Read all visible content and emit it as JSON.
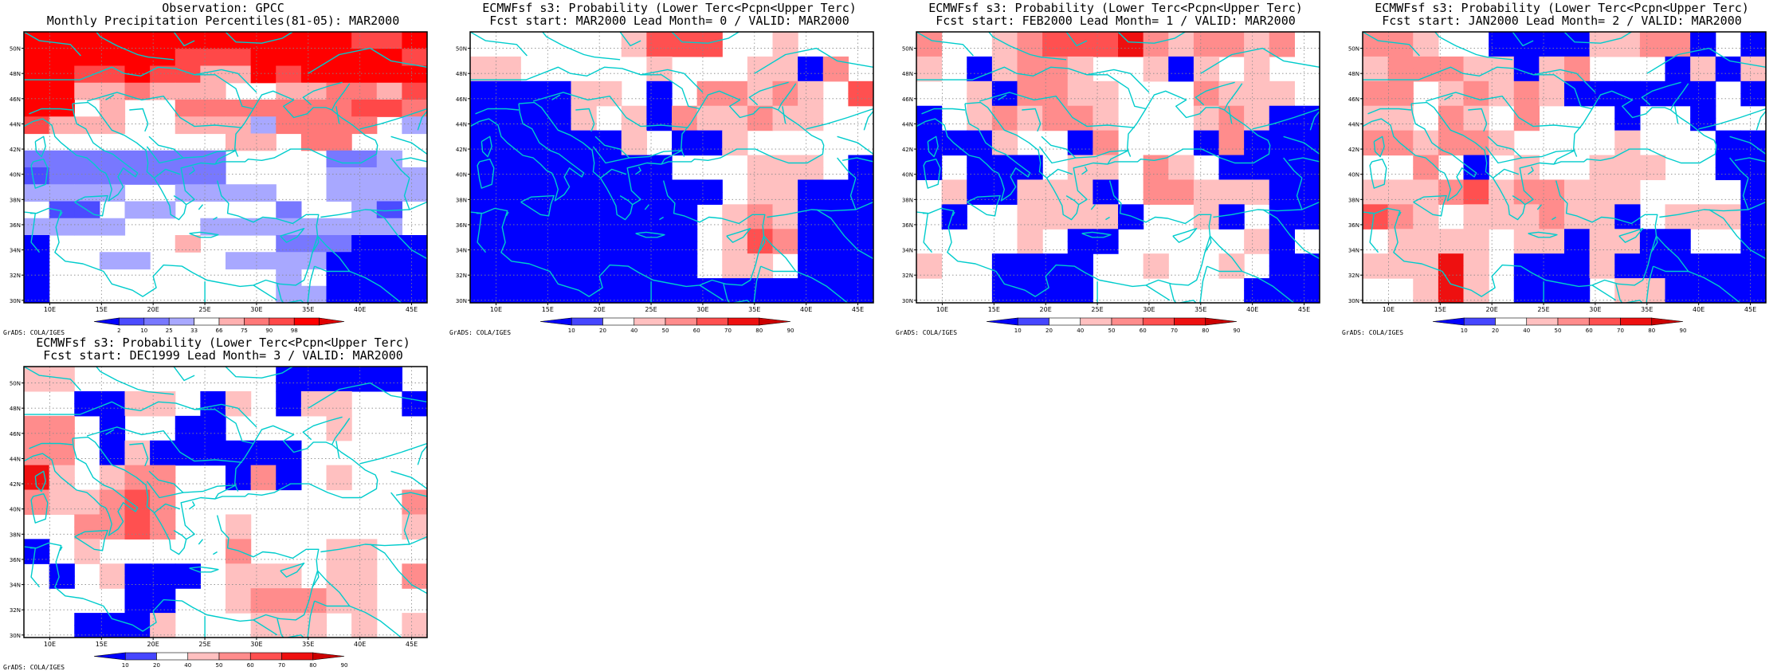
{
  "colors": {
    "obs_palette": {
      "1": "#0000ff",
      "2": "#4b4bff",
      "3": "#7878ff",
      "4": "#a8a8ff",
      "5": "#ffffff",
      "6": "#ffb0b0",
      "7": "#ff7878",
      "8": "#ff4848",
      "9": "#ff0000",
      "10": "#e00000"
    },
    "prob_palette": {
      "1": "#0000ff",
      "2": "#4646ff",
      "3": "#ffffff",
      "4": "#ffc0c0",
      "5": "#ff8c8c",
      "6": "#ff5050",
      "7": "#ee1010",
      "8": "#cc0000"
    },
    "coast": "#00cccc",
    "grid": "#888888"
  },
  "chart_data": [
    {
      "type": "heatmap",
      "title_line1": "Observation: GPCC",
      "title_line2": "Monthly Precipitation Percentiles(81-05): MAR2000",
      "x_ticks": [
        "10E",
        "15E",
        "20E",
        "25E",
        "30E",
        "35E",
        "40E",
        "45E"
      ],
      "y_ticks": [
        "50N",
        "48N",
        "46N",
        "44N",
        "42N",
        "40N",
        "38N",
        "36N",
        "34N",
        "32N",
        "30N"
      ],
      "xlim": [
        7.5,
        46.5
      ],
      "ylim": [
        29.8,
        51.3
      ],
      "legend_labels": [
        "2",
        "10",
        "25",
        "33",
        "66",
        "75",
        "90",
        "98"
      ],
      "credit": "GrADS: COLA/IGES",
      "palette": "obs_palette",
      "grid_class_rows_north_to_south": [
        "9999999999999889",
        "9999998889999998",
        "9988988669899999",
        "9966766655667768",
        "9956557777777887",
        "8666556664777754",
        "5555555566577555",
        "3333333355553345",
        "2333333355554444",
        "4444554444554444",
        "5225445555355425",
        "4444555444444445",
        "1555556555333111",
        "1554455544441111",
        "1555555555451111",
        "1555555555441111"
      ]
    },
    {
      "type": "heatmap",
      "title_line1": "ECMWFsf s3: Probability (Lower Terc<Pcpn<Upper Terc)",
      "title_line2": "Fcst start: MAR2000  Lead Month= 0 / VALID: MAR2000",
      "x_ticks": [
        "10E",
        "15E",
        "20E",
        "25E",
        "30E",
        "35E",
        "40E",
        "45E"
      ],
      "y_ticks": [
        "50N",
        "48N",
        "46N",
        "44N",
        "42N",
        "40N",
        "38N",
        "36N",
        "34N",
        "32N",
        "30N"
      ],
      "xlim": [
        7.5,
        46.5
      ],
      "ylim": [
        29.8,
        51.3
      ],
      "legend_labels": [
        "10",
        "20",
        "40",
        "50",
        "60",
        "70",
        "80",
        "90"
      ],
      "palette": "prob_palette",
      "grid_class_rows_north_to_south": [
        "3333334666334333",
        "3333334666334333",
        "4433333433344153",
        "4433333433344153",
        "1111443135545436",
        "1111443135545436",
        "1111434154454433",
        "1111434154454433",
        "1111114311433333",
        "1111114311433333",
        "1111111133344431",
        "1111111133344431",
        "1111111111344111",
        "1111111111344111",
        "1111111113454111",
        "1111111113454111",
        "1111111113465111",
        "1111111113465111",
        "1111111113443111",
        "1111111113443111",
        "1111111111111111",
        "1111111111111111"
      ]
    },
    {
      "type": "heatmap",
      "title_line1": "ECMWFsf s3: Probability (Lower Terc<Pcpn<Upper Terc)",
      "title_line2": "Fcst start: FEB2000  Lead Month= 1 / VALID: MAR2000",
      "x_ticks": [
        "10E",
        "15E",
        "20E",
        "25E",
        "30E",
        "35E",
        "40E",
        "45E"
      ],
      "y_ticks": [
        "50N",
        "48N",
        "46N",
        "44N",
        "42N",
        "40N",
        "38N",
        "36N",
        "34N",
        "32N",
        "30N"
      ],
      "xlim": [
        7.5,
        46.5
      ],
      "ylim": [
        29.8,
        51.3
      ],
      "legend_labels": [
        "10",
        "20",
        "40",
        "50",
        "60",
        "70",
        "80",
        "90"
      ],
      "palette": "prob_palette",
      "grid_class_rows_north_to_south": [
        "5334566675455453",
        "5334566675455453",
        "4314554334143433",
        "4314554334143433",
        "3341554433354443",
        "3341554433354443",
        "1345455433345411",
        "1345455433345411",
        "1114331533315111",
        "1114331533315111",
        "1311134435431111",
        "1311134435431111",
        "3411444135544411",
        "3411444135544411",
        "3133444413341311",
        "3133444413341311",
        "3333431133333413",
        "3333431133333413",
        "4331111334334311",
        "4331111334334311",
        "3331111333333111",
        "3331111333333111"
      ]
    },
    {
      "type": "heatmap",
      "title_line1": "ECMWFsf s3: Probability (Lower Terc<Pcpn<Upper Terc)",
      "title_line2": "Fcst start: JAN2000  Lead Month= 2 / VALID: MAR2000",
      "x_ticks": [
        "10E",
        "15E",
        "20E",
        "25E",
        "30E",
        "35E",
        "40E",
        "45E"
      ],
      "y_ticks": [
        "50N",
        "48N",
        "46N",
        "44N",
        "42N",
        "40N",
        "38N",
        "36N",
        "34N",
        "32N",
        "30N"
      ],
      "xlim": [
        7.5,
        46.5
      ],
      "ylim": [
        29.8,
        51.3
      ],
      "legend_labels": [
        "10",
        "20",
        "40",
        "50",
        "60",
        "70",
        "80",
        "90"
      ],
      "palette": "prob_palette",
      "grid_class_rows_north_to_south": [
        "5543311114455131",
        "5543311114455131",
        "4555441453331414",
        "4555441453331414",
        "5534545411111131",
        "5534545411111131",
        "4435435333133133",
        "4435435333133133",
        "5545543333433311",
        "5545543333433311",
        "3353134334443311",
        "3353134334443311",
        "4445645544433331",
        "4445645544433331",
        "6543444544134441",
        "6543444544134441",
        "3444434414411331",
        "3444434414411331",
        "4447431114111111",
        "4447431114111111",
        "3347431113441111",
        "3347431113441111"
      ]
    },
    {
      "type": "heatmap",
      "title_line1": "ECMWFsf s3: Probability (Lower Terc<Pcpn<Upper Terc)",
      "title_line2": "Fcst start: DEC1999  Lead Month= 3 / VALID: MAR2000",
      "x_ticks": [
        "10E",
        "15E",
        "20E",
        "25E",
        "30E",
        "35E",
        "40E",
        "45E"
      ],
      "y_ticks": [
        "50N",
        "48N",
        "46N",
        "44N",
        "42N",
        "40N",
        "38N",
        "36N",
        "34N",
        "32N",
        "30N"
      ],
      "xlim": [
        7.5,
        46.5
      ],
      "ylim": [
        29.8,
        51.3
      ],
      "legend_labels": [
        "10",
        "20",
        "40",
        "50",
        "60",
        "70",
        "80",
        "90"
      ],
      "palette": "prob_palette",
      "grid_class_rows_north_to_south": [
        "4433333333111113",
        "4433333333111113",
        "3311443143144331",
        "3311443143144331",
        "5531331133334333",
        "5531331133334333",
        "5531411111133333",
        "5531411111133333",
        "7434553315134333",
        "7434553315134333",
        "5445653333333335",
        "5445653333333335",
        "3355653343333334",
        "3355653343333334",
        "1343333353334433",
        "1343333353334433",
        "3134111344434435",
        "3134111344434435",
        "3333113345554433",
        "3333113345554433",
        "3311143334443434",
        "3311143334443434"
      ]
    }
  ]
}
